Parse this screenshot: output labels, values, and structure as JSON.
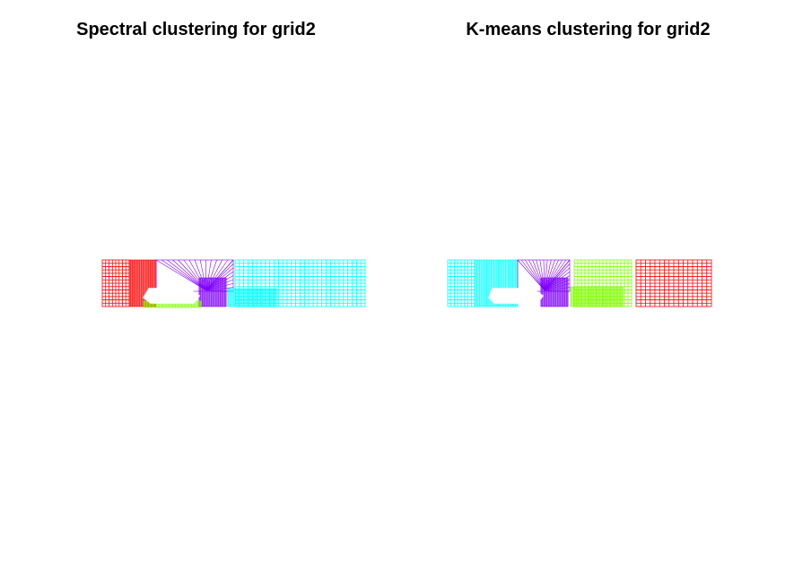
{
  "figure": {
    "panels": [
      {
        "id": "spectral",
        "title": "Spectral clustering for grid2",
        "colors": [
          "#ff0000",
          "#8000ff",
          "#00ffff",
          "#80ff00"
        ]
      },
      {
        "id": "kmeans",
        "title": "K-means clustering for grid2",
        "colors": [
          "#00ffff",
          "#8000ff",
          "#80ff00",
          "#ff0000"
        ]
      }
    ]
  }
}
